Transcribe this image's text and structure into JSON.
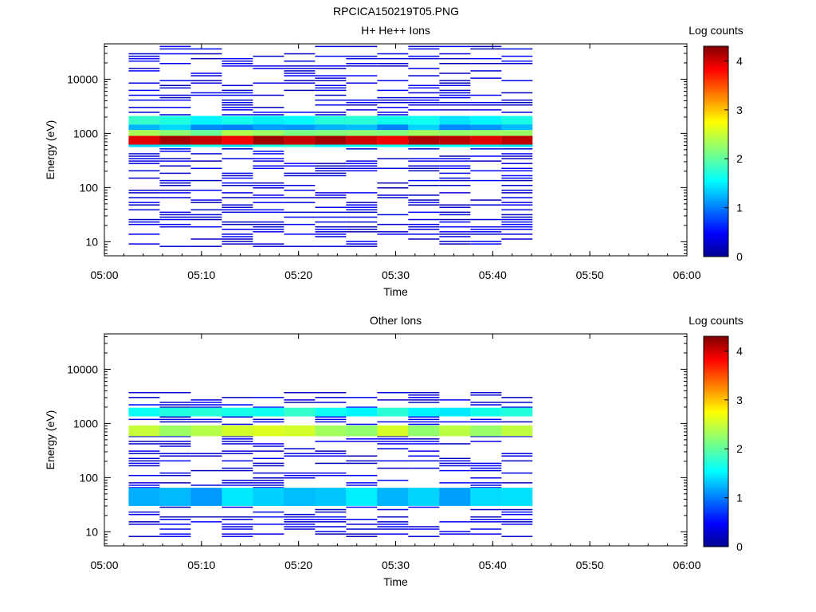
{
  "figure_title": "RPCICA150219T05.PNG",
  "chart_data": [
    {
      "type": "heatmap",
      "title": "H+ He++ Ions",
      "xlabel": "Time",
      "ylabel": "Energy (eV)",
      "x_ticks": [
        "05:00",
        "05:10",
        "05:20",
        "05:30",
        "05:40",
        "05:50",
        "06:00"
      ],
      "y_ticks": [
        "10",
        "100",
        "1000",
        "10000"
      ],
      "y_scale": "log",
      "ylim": [
        5.5,
        45000
      ],
      "xlim_minutes": [
        0,
        60
      ],
      "colorbar": {
        "label": "Log counts",
        "ticks": [
          "0",
          "1",
          "2",
          "3",
          "4"
        ],
        "range": [
          0,
          4.3
        ]
      },
      "time_bins_minutes": [
        2.5,
        5.7,
        8.9,
        12.1,
        15.3,
        18.5,
        21.7,
        24.9,
        28.1,
        31.3,
        34.5,
        37.7,
        40.9,
        44.1
      ],
      "bands": [
        {
          "energy_range": [
            1450,
            2100
          ],
          "level": 1.6
        },
        {
          "energy_range": [
            1150,
            1450
          ],
          "level": 1.2
        },
        {
          "energy_range": [
            900,
            1150
          ],
          "level": 2.2
        },
        {
          "energy_range": [
            620,
            900
          ],
          "level": 4.0
        },
        {
          "energy_range": [
            560,
            620
          ],
          "level": 1.6
        }
      ]
    },
    {
      "type": "heatmap",
      "title": "Other Ions",
      "xlabel": "Time",
      "ylabel": "Energy (eV)",
      "x_ticks": [
        "05:00",
        "05:10",
        "05:20",
        "05:30",
        "05:40",
        "05:50",
        "06:00"
      ],
      "y_ticks": [
        "10",
        "100",
        "1000",
        "10000"
      ],
      "y_scale": "log",
      "ylim": [
        5.5,
        45000
      ],
      "xlim_minutes": [
        0,
        60
      ],
      "colorbar": {
        "label": "Log counts",
        "ticks": [
          "0",
          "1",
          "2",
          "3",
          "4"
        ],
        "range": [
          0,
          4.3
        ]
      },
      "time_bins_minutes": [
        2.5,
        5.7,
        8.9,
        12.1,
        15.3,
        18.5,
        21.7,
        24.9,
        28.1,
        31.3,
        34.5,
        37.7,
        40.9,
        44.1
      ],
      "bands": [
        {
          "energy_range": [
            1350,
            1950
          ],
          "level": 1.6
        },
        {
          "energy_range": [
            580,
            920
          ],
          "level": 2.4
        },
        {
          "energy_range": [
            30,
            65
          ],
          "level": 1.3
        }
      ]
    }
  ]
}
